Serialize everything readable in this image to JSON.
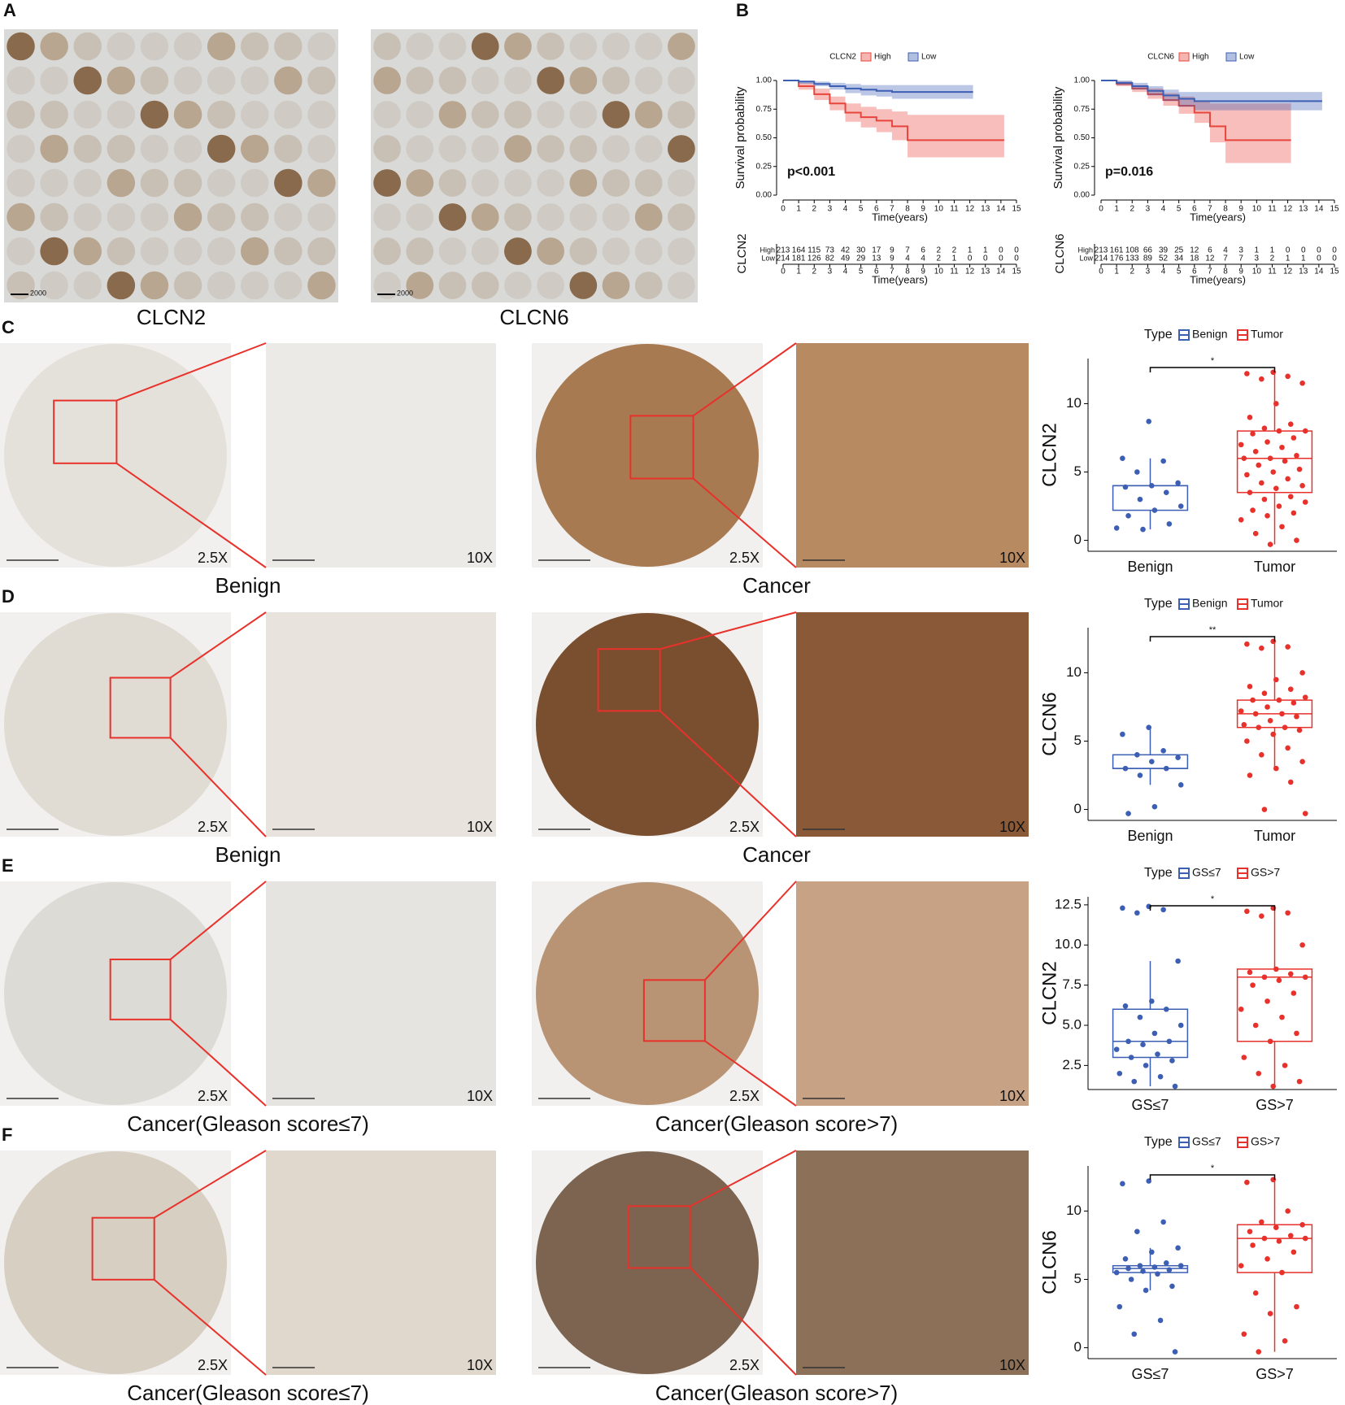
{
  "panel_labels": [
    "A",
    "B"
  ],
  "tma": {
    "labels": [
      "CLCN2",
      "CLCN6"
    ],
    "scale_bar": "2000"
  },
  "magnifications": [
    "2.5X",
    "10X"
  ],
  "ihc_rows": [
    {
      "label": "C",
      "captions": [
        "Benign",
        "Cancer"
      ]
    },
    {
      "label": "D",
      "captions": [
        "Benign",
        "Cancer"
      ]
    },
    {
      "label": "E",
      "captions": [
        "Cancer(Gleason score≤7)",
        "Cancer(Gleason score>7)"
      ]
    },
    {
      "label": "F",
      "captions": [
        "Cancer(Gleason score≤7)",
        "Cancer(Gleason score>7)"
      ]
    }
  ],
  "chart_data": [
    {
      "type": "survival",
      "legend_title": "CLCN2",
      "p_value": "p<0.001",
      "xlabel": "Time(years)",
      "ylabel": "Survival probability",
      "xlim": [
        0,
        15
      ],
      "xticks": [
        0,
        1,
        2,
        3,
        4,
        5,
        6,
        7,
        8,
        9,
        10,
        11,
        12,
        13,
        14,
        15
      ],
      "ylim": [
        0,
        1
      ],
      "yticks": [
        {
          "value": 0,
          "label": "0.00"
        },
        {
          "value": 0.25,
          "label": "0.25"
        },
        {
          "value": 0.5,
          "label": "0.50"
        },
        {
          "value": 0.75,
          "label": "0.75"
        },
        {
          "value": 1,
          "label": "1.00"
        }
      ],
      "series": [
        {
          "name": "High",
          "color": "#e8453c",
          "x": [
            0,
            1,
            2,
            3,
            4,
            5,
            6,
            7,
            8,
            9,
            10,
            11,
            12,
            13,
            14
          ],
          "values": [
            1,
            0.95,
            0.88,
            0.8,
            0.72,
            0.68,
            0.65,
            0.6,
            0.48,
            0.48,
            0.48,
            0.48,
            0.48,
            0.48,
            0.48
          ],
          "ci_lower": [
            1,
            0.92,
            0.83,
            0.74,
            0.64,
            0.59,
            0.55,
            0.48,
            0.33,
            0.33,
            0.33,
            0.33,
            0.33,
            0.33,
            0.33
          ],
          "ci_upper": [
            1,
            0.98,
            0.93,
            0.86,
            0.8,
            0.77,
            0.75,
            0.73,
            0.7,
            0.7,
            0.7,
            0.7,
            0.7,
            0.7,
            0.7
          ]
        },
        {
          "name": "Low",
          "color": "#3d5fb3",
          "x": [
            0,
            1,
            2,
            3,
            4,
            5,
            6,
            7,
            8,
            9,
            10,
            11,
            12
          ],
          "values": [
            1,
            0.99,
            0.97,
            0.95,
            0.93,
            0.92,
            0.91,
            0.9,
            0.9,
            0.9,
            0.9,
            0.9,
            0.9
          ],
          "ci_lower": [
            1,
            0.97,
            0.95,
            0.92,
            0.89,
            0.87,
            0.86,
            0.84,
            0.84,
            0.84,
            0.84,
            0.84,
            0.84
          ],
          "ci_upper": [
            1,
            1,
            0.99,
            0.98,
            0.97,
            0.96,
            0.96,
            0.96,
            0.96,
            0.96,
            0.96,
            0.96,
            0.96
          ]
        }
      ],
      "risk_table": [
        [
          213,
          164,
          115,
          73,
          42,
          30,
          17,
          9,
          7,
          6,
          2,
          2,
          1,
          1,
          0,
          0
        ],
        [
          214,
          181,
          126,
          82,
          49,
          29,
          13,
          9,
          4,
          4,
          2,
          1,
          0,
          0,
          0,
          0
        ]
      ]
    },
    {
      "type": "survival",
      "legend_title": "CLCN6",
      "p_value": "p=0.016",
      "xlabel": "Time(years)",
      "ylabel": "Survival probability",
      "xlim": [
        0,
        15
      ],
      "xticks": [
        0,
        1,
        2,
        3,
        4,
        5,
        6,
        7,
        8,
        9,
        10,
        11,
        12,
        13,
        14,
        15
      ],
      "ylim": [
        0,
        1
      ],
      "yticks": [
        {
          "value": 0,
          "label": "0.00"
        },
        {
          "value": 0.25,
          "label": "0.25"
        },
        {
          "value": 0.5,
          "label": "0.50"
        },
        {
          "value": 0.75,
          "label": "0.75"
        },
        {
          "value": 1,
          "label": "1.00"
        }
      ],
      "series": [
        {
          "name": "High",
          "color": "#e8453c",
          "x": [
            0,
            1,
            2,
            3,
            4,
            5,
            6,
            7,
            8,
            9,
            10,
            11,
            12
          ],
          "values": [
            1,
            0.97,
            0.93,
            0.88,
            0.83,
            0.78,
            0.72,
            0.6,
            0.48,
            0.48,
            0.48,
            0.48,
            0.48
          ],
          "ci_lower": [
            1,
            0.95,
            0.9,
            0.84,
            0.78,
            0.71,
            0.63,
            0.46,
            0.28,
            0.28,
            0.28,
            0.28,
            0.28
          ],
          "ci_upper": [
            1,
            0.99,
            0.96,
            0.93,
            0.89,
            0.86,
            0.82,
            0.8,
            0.8,
            0.8,
            0.8,
            0.8,
            0.8
          ]
        },
        {
          "name": "Low",
          "color": "#3d5fb3",
          "x": [
            0,
            1,
            2,
            3,
            4,
            5,
            6,
            7,
            8,
            9,
            10,
            11,
            12,
            13,
            14
          ],
          "values": [
            1,
            0.98,
            0.95,
            0.91,
            0.87,
            0.84,
            0.82,
            0.82,
            0.82,
            0.82,
            0.82,
            0.82,
            0.82,
            0.82,
            0.82
          ],
          "ci_lower": [
            1,
            0.96,
            0.92,
            0.87,
            0.82,
            0.77,
            0.74,
            0.74,
            0.74,
            0.74,
            0.74,
            0.74,
            0.74,
            0.74,
            0.74
          ],
          "ci_upper": [
            1,
            1,
            0.98,
            0.95,
            0.92,
            0.9,
            0.9,
            0.9,
            0.9,
            0.9,
            0.9,
            0.9,
            0.9,
            0.9,
            0.9
          ]
        }
      ],
      "risk_table": [
        [
          213,
          161,
          108,
          66,
          39,
          25,
          12,
          6,
          4,
          3,
          1,
          1,
          0,
          0,
          0,
          0
        ],
        [
          214,
          176,
          133,
          89,
          52,
          34,
          18,
          12,
          7,
          7,
          3,
          2,
          1,
          1,
          0,
          0
        ]
      ]
    },
    {
      "type": "box",
      "legend_title": "Type",
      "ylabel": "CLCN2",
      "significance": "*",
      "ylim": [
        -0.8,
        13.3
      ],
      "yticks": [
        0,
        5,
        10
      ],
      "groups": [
        {
          "name": "Benign",
          "color": "#3d5fb3",
          "q1": 2.2,
          "median": 4,
          "q3": 4,
          "whisker_low": 0.8,
          "whisker_high": 6,
          "points": [
            8.7,
            6,
            5.8,
            5,
            4.2,
            4,
            3.9,
            3.5,
            3,
            2.5,
            2.2,
            1.8,
            1.2,
            0.8,
            0.9
          ]
        },
        {
          "name": "Tumor",
          "color": "#e8312a",
          "q1": 3.5,
          "median": 6,
          "q3": 8,
          "whisker_low": -0.3,
          "whisker_high": 12.3,
          "points": [
            12.3,
            12.2,
            12,
            11.8,
            11.5,
            10,
            9,
            8.5,
            8.2,
            8,
            8,
            7.8,
            7.5,
            7.2,
            7,
            6.8,
            6.5,
            6.2,
            6,
            6,
            5.8,
            5.5,
            5.2,
            5,
            4.8,
            4.5,
            4.2,
            4,
            3.8,
            3.5,
            3.2,
            3,
            2.8,
            2.5,
            2.2,
            2,
            1.8,
            1.5,
            1,
            0.5,
            0,
            -0.3
          ]
        }
      ]
    },
    {
      "type": "box",
      "legend_title": "Type",
      "ylabel": "CLCN6",
      "significance": "**",
      "ylim": [
        -0.8,
        13.3
      ],
      "yticks": [
        0,
        5,
        10
      ],
      "groups": [
        {
          "name": "Benign",
          "color": "#3d5fb3",
          "q1": 3,
          "median": 3,
          "q3": 4,
          "whisker_low": 1.8,
          "whisker_high": 6,
          "points": [
            6,
            5.5,
            4.3,
            4,
            3.8,
            3.5,
            3,
            3,
            2.5,
            1.8,
            0.2,
            -0.3
          ]
        },
        {
          "name": "Tumor",
          "color": "#e8312a",
          "q1": 6,
          "median": 7,
          "q3": 8,
          "whisker_low": 3,
          "whisker_high": 12.3,
          "points": [
            12.3,
            12.1,
            11.9,
            11.8,
            10,
            9.5,
            9,
            8.8,
            8.5,
            8.2,
            8,
            8,
            7.8,
            7.5,
            7.2,
            7,
            7,
            6.8,
            6.5,
            6.2,
            6,
            6,
            5.8,
            5.5,
            5,
            4.5,
            4,
            3.5,
            3,
            2.5,
            2,
            0,
            -0.3
          ]
        }
      ]
    },
    {
      "type": "box",
      "legend_title": "Type",
      "ylabel": "CLCN2",
      "significance": "*",
      "ylim": [
        1,
        13
      ],
      "yticks": [
        {
          "value": 2.5,
          "label": "2.5"
        },
        {
          "value": 5,
          "label": "5.0"
        },
        {
          "value": 7.5,
          "label": "7.5"
        },
        {
          "value": 10,
          "label": "10.0"
        },
        {
          "value": 12.5,
          "label": "12.5"
        }
      ],
      "groups": [
        {
          "name": "GS≤7",
          "color": "#3d5fb3",
          "q1": 3,
          "median": 4,
          "q3": 6,
          "whisker_low": 1.2,
          "whisker_high": 9,
          "points": [
            12.4,
            12.3,
            12.2,
            12,
            9,
            6.5,
            6.2,
            6,
            5.5,
            5,
            4.5,
            4,
            4,
            3.8,
            3.5,
            3.2,
            3,
            2.8,
            2.5,
            2,
            1.8,
            1.5,
            1.2
          ]
        },
        {
          "name": "GS>7",
          "color": "#e8312a",
          "q1": 4,
          "median": 8,
          "q3": 8.5,
          "whisker_low": 1.2,
          "whisker_high": 12.3,
          "points": [
            12.3,
            12.1,
            12,
            11.8,
            10,
            8.5,
            8.3,
            8.2,
            8,
            8,
            7.8,
            7.5,
            7,
            6.5,
            6,
            5.5,
            5,
            4.5,
            4,
            3,
            2.5,
            2,
            1.5,
            1.2
          ]
        }
      ]
    },
    {
      "type": "box",
      "legend_title": "Type",
      "ylabel": "CLCN6",
      "significance": "*",
      "ylim": [
        -0.8,
        13.3
      ],
      "yticks": [
        0,
        5,
        10
      ],
      "groups": [
        {
          "name": "GS≤7",
          "color": "#3d5fb3",
          "q1": 5.5,
          "median": 5.8,
          "q3": 6,
          "whisker_low": 4.2,
          "whisker_high": 7.3,
          "points": [
            12.2,
            12,
            9.2,
            8.5,
            7.3,
            7,
            6.5,
            6.2,
            6,
            6,
            5.9,
            5.8,
            5.7,
            5.6,
            5.5,
            5.4,
            5,
            4.5,
            4.2,
            3,
            2,
            1,
            -0.3
          ]
        },
        {
          "name": "GS>7",
          "color": "#e8312a",
          "q1": 5.5,
          "median": 8,
          "q3": 9,
          "whisker_low": -0.3,
          "whisker_high": 12.3,
          "points": [
            12.3,
            12.1,
            10,
            9.2,
            9,
            8.8,
            8.5,
            8.2,
            8,
            8,
            7.8,
            7.5,
            7,
            6.5,
            6,
            5.5,
            4,
            3,
            2.5,
            1,
            0.5,
            -0.3
          ]
        }
      ]
    }
  ]
}
